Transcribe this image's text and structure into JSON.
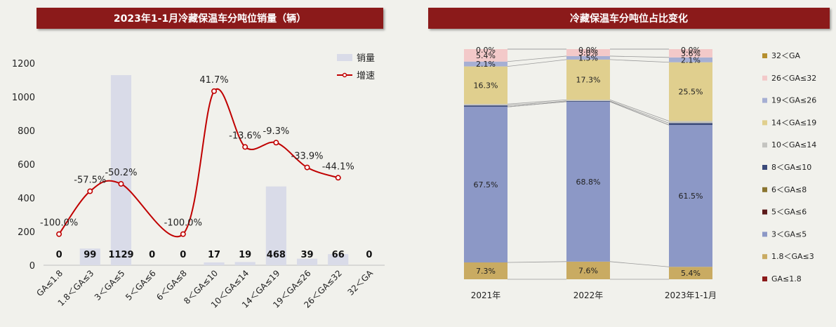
{
  "left_chart": {
    "title": "2023年1-1月冷藏保温车分吨位销量（辆）",
    "chart_data": {
      "type": "bar",
      "categories": [
        "GA≤1.8",
        "1.8＜GA≤3",
        "3＜GA≤5",
        "5＜GA≤6",
        "6＜GA≤8",
        "8＜GA≤10",
        "10＜GA≤14",
        "14＜GA≤19",
        "19＜GA≤26",
        "26＜GA≤32",
        "32＜GA"
      ],
      "ylim": [
        0,
        1200
      ],
      "yticks": [
        0,
        200,
        400,
        600,
        800,
        1000,
        1200
      ],
      "series": [
        {
          "name": "销量",
          "type": "bar",
          "color": "#d9dbe8",
          "values": [
            0,
            99,
            1129,
            0,
            0,
            17,
            19,
            468,
            39,
            66,
            0
          ],
          "labels": [
            "0",
            "99",
            "1129",
            "0",
            "0",
            "17",
            "19",
            "468",
            "39",
            "66",
            "0"
          ]
        },
        {
          "name": "增速",
          "type": "line",
          "color": "#c00000",
          "values": [
            -100.0,
            -57.5,
            -50.2,
            null,
            -100.0,
            41.7,
            -13.6,
            -9.3,
            -33.9,
            -44.1,
            null
          ],
          "labels": [
            "-100.0%",
            "-57.5%",
            "-50.2%",
            "",
            "-100.0%",
            "41.7%",
            "-13.6%",
            "-9.3%",
            "-33.9%",
            "-44.1%",
            ""
          ]
        }
      ]
    }
  },
  "right_chart": {
    "title": "冷藏保温车分吨位占比变化",
    "chart_data": {
      "type": "bar",
      "stacked": "percent",
      "categories": [
        "2021年",
        "2022年",
        "2023年1-1月"
      ],
      "series": [
        {
          "name": "GA≤1.8",
          "color": "#8b1a1a",
          "values": [
            0,
            0,
            0
          ],
          "labels": [
            "",
            "",
            ""
          ]
        },
        {
          "name": "1.8＜GA≤3",
          "color": "#c9ab62",
          "values": [
            7.3,
            7.6,
            5.4
          ],
          "labels": [
            "7.3%",
            "7.6%",
            "5.4%"
          ]
        },
        {
          "name": "3＜GA≤5",
          "color": "#8c98c6",
          "values": [
            67.5,
            68.8,
            61.5
          ],
          "labels": [
            "67.5%",
            "68.8%",
            "61.5%"
          ]
        },
        {
          "name": "5＜GA≤6",
          "color": "#5c1a1a",
          "values": [
            0,
            0,
            0
          ],
          "labels": [
            "",
            "",
            ""
          ]
        },
        {
          "name": "6＜GA≤8",
          "color": "#8a7430",
          "values": [
            0,
            0,
            0
          ],
          "labels": [
            "",
            "",
            ""
          ]
        },
        {
          "name": "8＜GA≤10",
          "color": "#3b4a7a",
          "values": [
            0.6,
            0.3,
            0.8
          ],
          "labels": [
            "",
            "",
            ""
          ]
        },
        {
          "name": "10＜GA≤14",
          "color": "#c4c4c0",
          "values": [
            0.6,
            0.5,
            0.9
          ],
          "labels": [
            "",
            "",
            ""
          ]
        },
        {
          "name": "14＜GA≤19",
          "color": "#e0cf8e",
          "values": [
            16.3,
            17.3,
            25.5
          ],
          "labels": [
            "16.3%",
            "17.3%",
            "25.5%"
          ]
        },
        {
          "name": "19＜GA≤26",
          "color": "#a6afd3",
          "values": [
            2.1,
            1.5,
            2.1
          ],
          "labels": [
            "2.1%",
            "1.5%",
            "2.1%"
          ]
        },
        {
          "name": "26＜GA≤32",
          "color": "#f3c9c9",
          "values": [
            5.4,
            3.0,
            3.6
          ],
          "labels": [
            "5.4%",
            "3.0%",
            "3.6%"
          ]
        },
        {
          "name": "32＜GA",
          "color": "#b58f2e",
          "values": [
            0.0,
            0.0,
            0.0
          ],
          "labels": [
            "0.0%",
            "0.0%",
            "0.0%"
          ]
        }
      ],
      "legend_position": "right"
    }
  }
}
